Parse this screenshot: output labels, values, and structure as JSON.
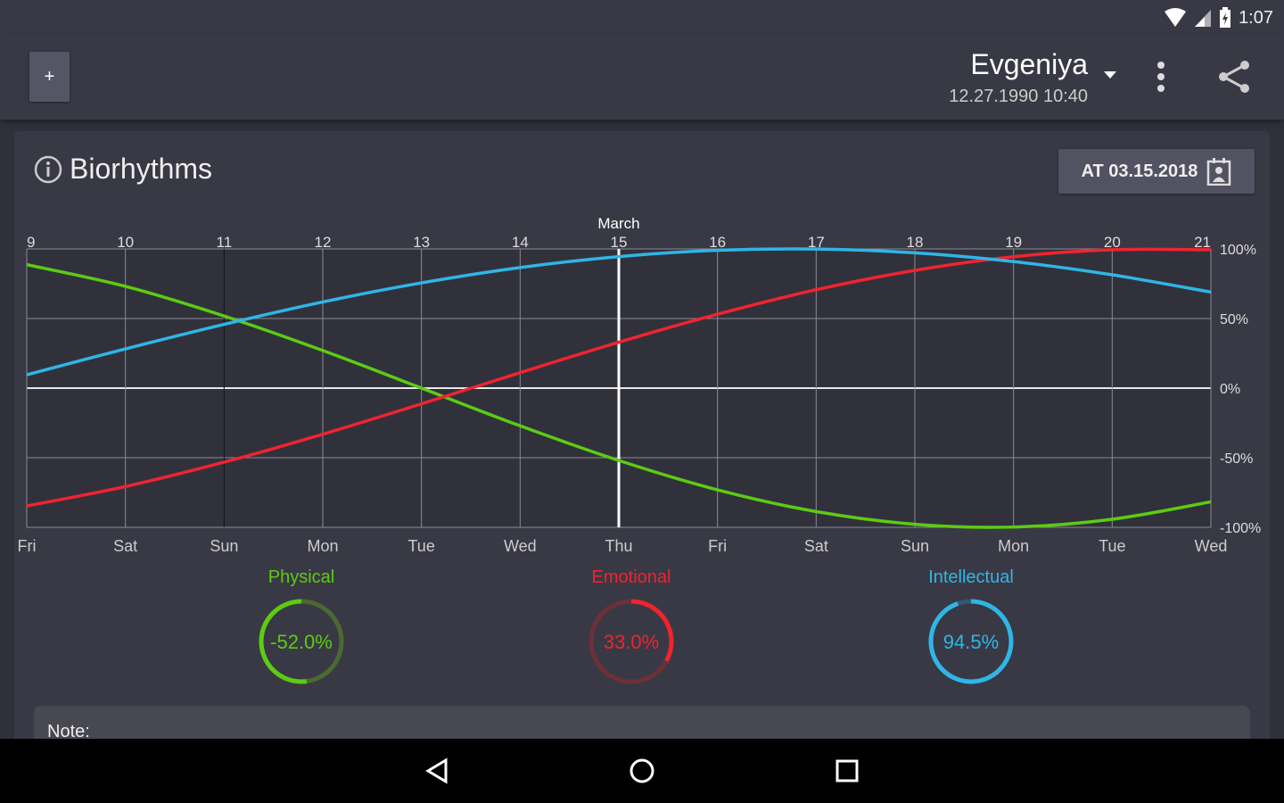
{
  "status": {
    "time": "1:07"
  },
  "header": {
    "add_label": "+",
    "name": "Evgeniya",
    "birth": "12.27.1990 10:40"
  },
  "card": {
    "title": "Biorhythms",
    "date_button": "AT 03.15.2018",
    "note_label": "Note:"
  },
  "chart_data": {
    "type": "line",
    "month_label": "March",
    "x": [
      9,
      10,
      11,
      12,
      13,
      14,
      15,
      16,
      17,
      18,
      19,
      20,
      21
    ],
    "weekdays": [
      "Fri",
      "Sat",
      "Sun",
      "Mon",
      "Tue",
      "Wed",
      "Thu",
      "Fri",
      "Sat",
      "Sun",
      "Mon",
      "Tue",
      "Wed"
    ],
    "current_day": 15,
    "ylim": [
      -100,
      100
    ],
    "yticks": [
      100,
      50,
      0,
      -50,
      -100
    ],
    "ytick_labels": [
      "100%",
      "50%",
      "0%",
      "-50%",
      "-100%"
    ],
    "series": [
      {
        "name": "Physical",
        "color": "#5ccc12",
        "values": [
          88.7,
          73.1,
          51.8,
          27.0,
          0.0,
          -27.1,
          -52.0,
          -73.1,
          -88.7,
          -97.8,
          -99.8,
          -94.2,
          -81.7
        ]
      },
      {
        "name": "Emotional",
        "color": "#f0242e",
        "values": [
          -84.7,
          -70.7,
          -53.2,
          -33.1,
          -11.3,
          11.1,
          33.0,
          53.1,
          70.7,
          84.6,
          94.4,
          99.4,
          99.4
        ]
      },
      {
        "name": "Intellectual",
        "color": "#2fb6e6",
        "values": [
          9.6,
          28.2,
          45.8,
          61.9,
          75.6,
          86.6,
          94.5,
          99.0,
          99.9,
          97.2,
          90.9,
          81.4,
          69.0
        ]
      }
    ]
  },
  "gauges": [
    {
      "label": "Physical",
      "value_text": "-52.0%",
      "value": -52.0,
      "color": "#5ccc12",
      "track": "#4a6a30"
    },
    {
      "label": "Emotional",
      "value_text": "33.0%",
      "value": 33.0,
      "color": "#f0242e",
      "track": "#6e3038"
    },
    {
      "label": "Intellectual",
      "value_text": "94.5%",
      "value": 94.5,
      "color": "#2fb6e6",
      "track": "#2f5a72"
    }
  ]
}
